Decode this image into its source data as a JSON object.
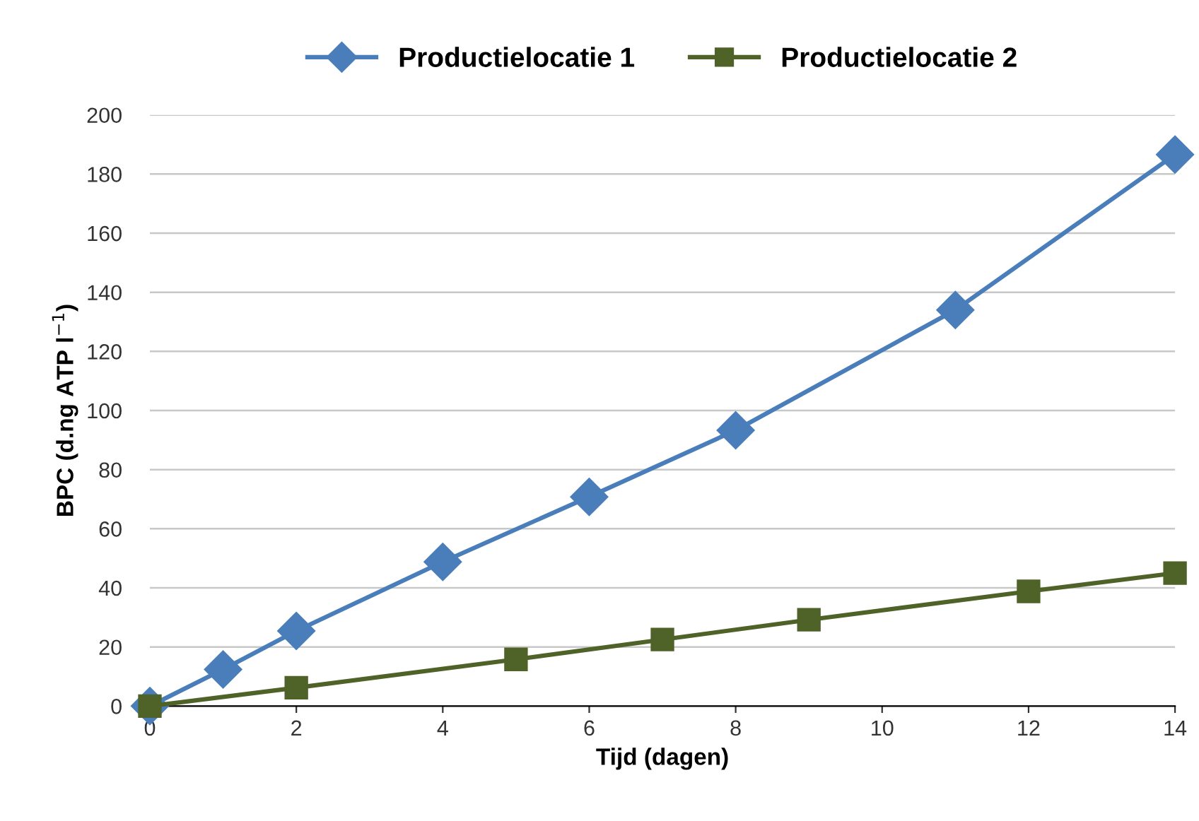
{
  "chart_data": {
    "type": "line",
    "xlabel": "Tijd (dagen)",
    "ylabel": "BPC (d.ng ATP l$^{−1}$)",
    "xlim": [
      0,
      14
    ],
    "xticks": [
      0,
      2,
      4,
      6,
      8,
      10,
      12,
      14
    ],
    "ylim": [
      0,
      200
    ],
    "yticks": [
      0,
      20,
      40,
      60,
      80,
      100,
      120,
      140,
      160,
      180,
      200
    ],
    "grid": "y",
    "legend": "top",
    "line_style": "solid",
    "series": [
      {
        "name": "Productielocatie 1",
        "color": "#4a7ebb",
        "marker": "diamond",
        "x": [
          0,
          1,
          2,
          4,
          6,
          8,
          11,
          14
        ],
        "values": [
          0,
          12.4,
          25.4,
          48.8,
          70.8,
          93.3,
          134,
          186.6
        ]
      },
      {
        "name": "Productielocatie 2",
        "color": "#4f6228",
        "marker": "square",
        "x": [
          0,
          2,
          5,
          7,
          9,
          12,
          14
        ],
        "values": [
          0,
          6.2,
          15.8,
          22.5,
          29.2,
          38.8,
          45
        ]
      }
    ]
  }
}
